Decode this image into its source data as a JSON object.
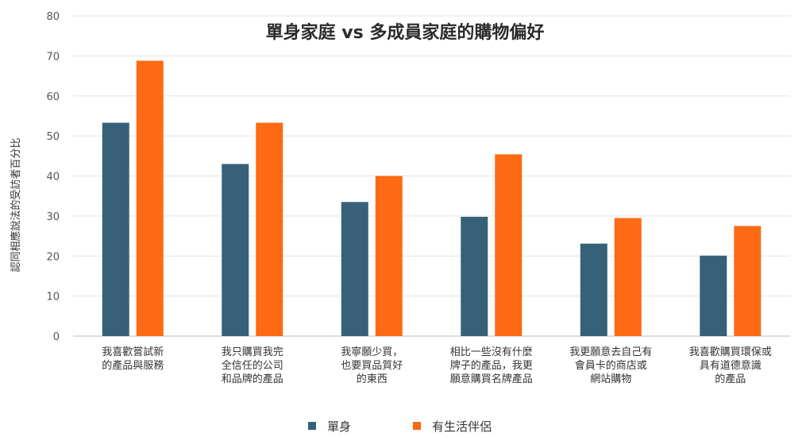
{
  "chart_data": {
    "type": "bar",
    "title": "單身家庭 vs 多成員家庭的購物偏好",
    "xlabel": "",
    "ylabel": "認同相應說法的受訪者百分比",
    "ylim": [
      0,
      80
    ],
    "yticks": [
      0,
      10,
      20,
      30,
      40,
      50,
      60,
      70,
      80
    ],
    "grid": true,
    "legend_position": "bottom",
    "categories": [
      [
        "我喜歡嘗試新",
        "的產品與服務"
      ],
      [
        "我只購買我完",
        "全信任的公司",
        "和品牌的產品"
      ],
      [
        "我寧願少買，",
        "也要買品質好",
        "的東西"
      ],
      [
        "相比一些沒有什麼",
        "牌子的產品，我更",
        "願意購買名牌產品"
      ],
      [
        "我更願意去自己有",
        "會員卡的商店或",
        "網站購物"
      ],
      [
        "我喜歡購買環保或",
        "具有道德意識",
        "的產品"
      ]
    ],
    "series": [
      {
        "name": "單身",
        "color": "#366179",
        "values": [
          53.3,
          43.0,
          33.5,
          29.8,
          23.1,
          20.1
        ]
      },
      {
        "name": "有生活伴侶",
        "color": "#fd6a13",
        "values": [
          68.8,
          53.3,
          40.0,
          45.4,
          29.5,
          27.5
        ]
      }
    ]
  }
}
